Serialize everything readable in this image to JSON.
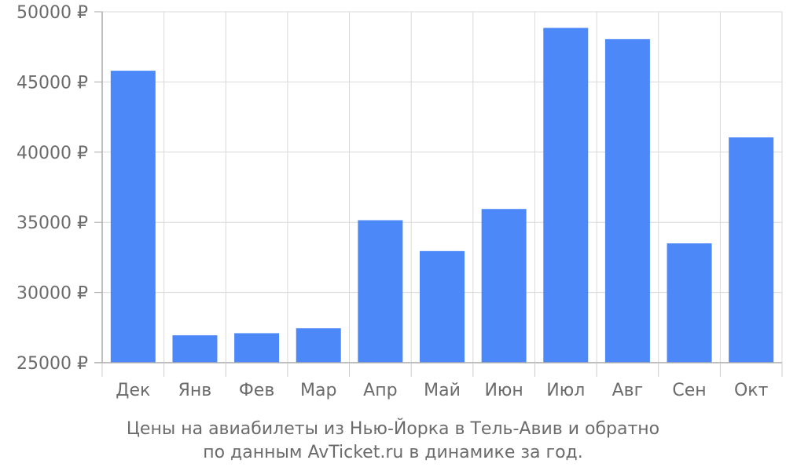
{
  "chart_data": {
    "type": "bar",
    "categories": [
      "Дек",
      "Янв",
      "Фев",
      "Мар",
      "Апр",
      "Май",
      "Июн",
      "Июл",
      "Авг",
      "Сен",
      "Окт"
    ],
    "values": [
      45800,
      26950,
      27100,
      27450,
      35150,
      32950,
      35950,
      48850,
      48050,
      33500,
      41050
    ],
    "ylim": [
      25000,
      50000
    ],
    "yticks": [
      25000,
      30000,
      35000,
      40000,
      45000,
      50000
    ],
    "ytick_labels": [
      "25000 ₽",
      "30000 ₽",
      "35000 ₽",
      "40000 ₽",
      "45000 ₽",
      "50000 ₽"
    ],
    "bar_color": "#4d88f9",
    "grid": true,
    "legend": "none"
  },
  "caption": {
    "line1": "Цены на авиабилеты из Нью-Йорка в Тель-Авив и обратно",
    "line2": "по данным AvTicket.ru в динамике за год."
  }
}
